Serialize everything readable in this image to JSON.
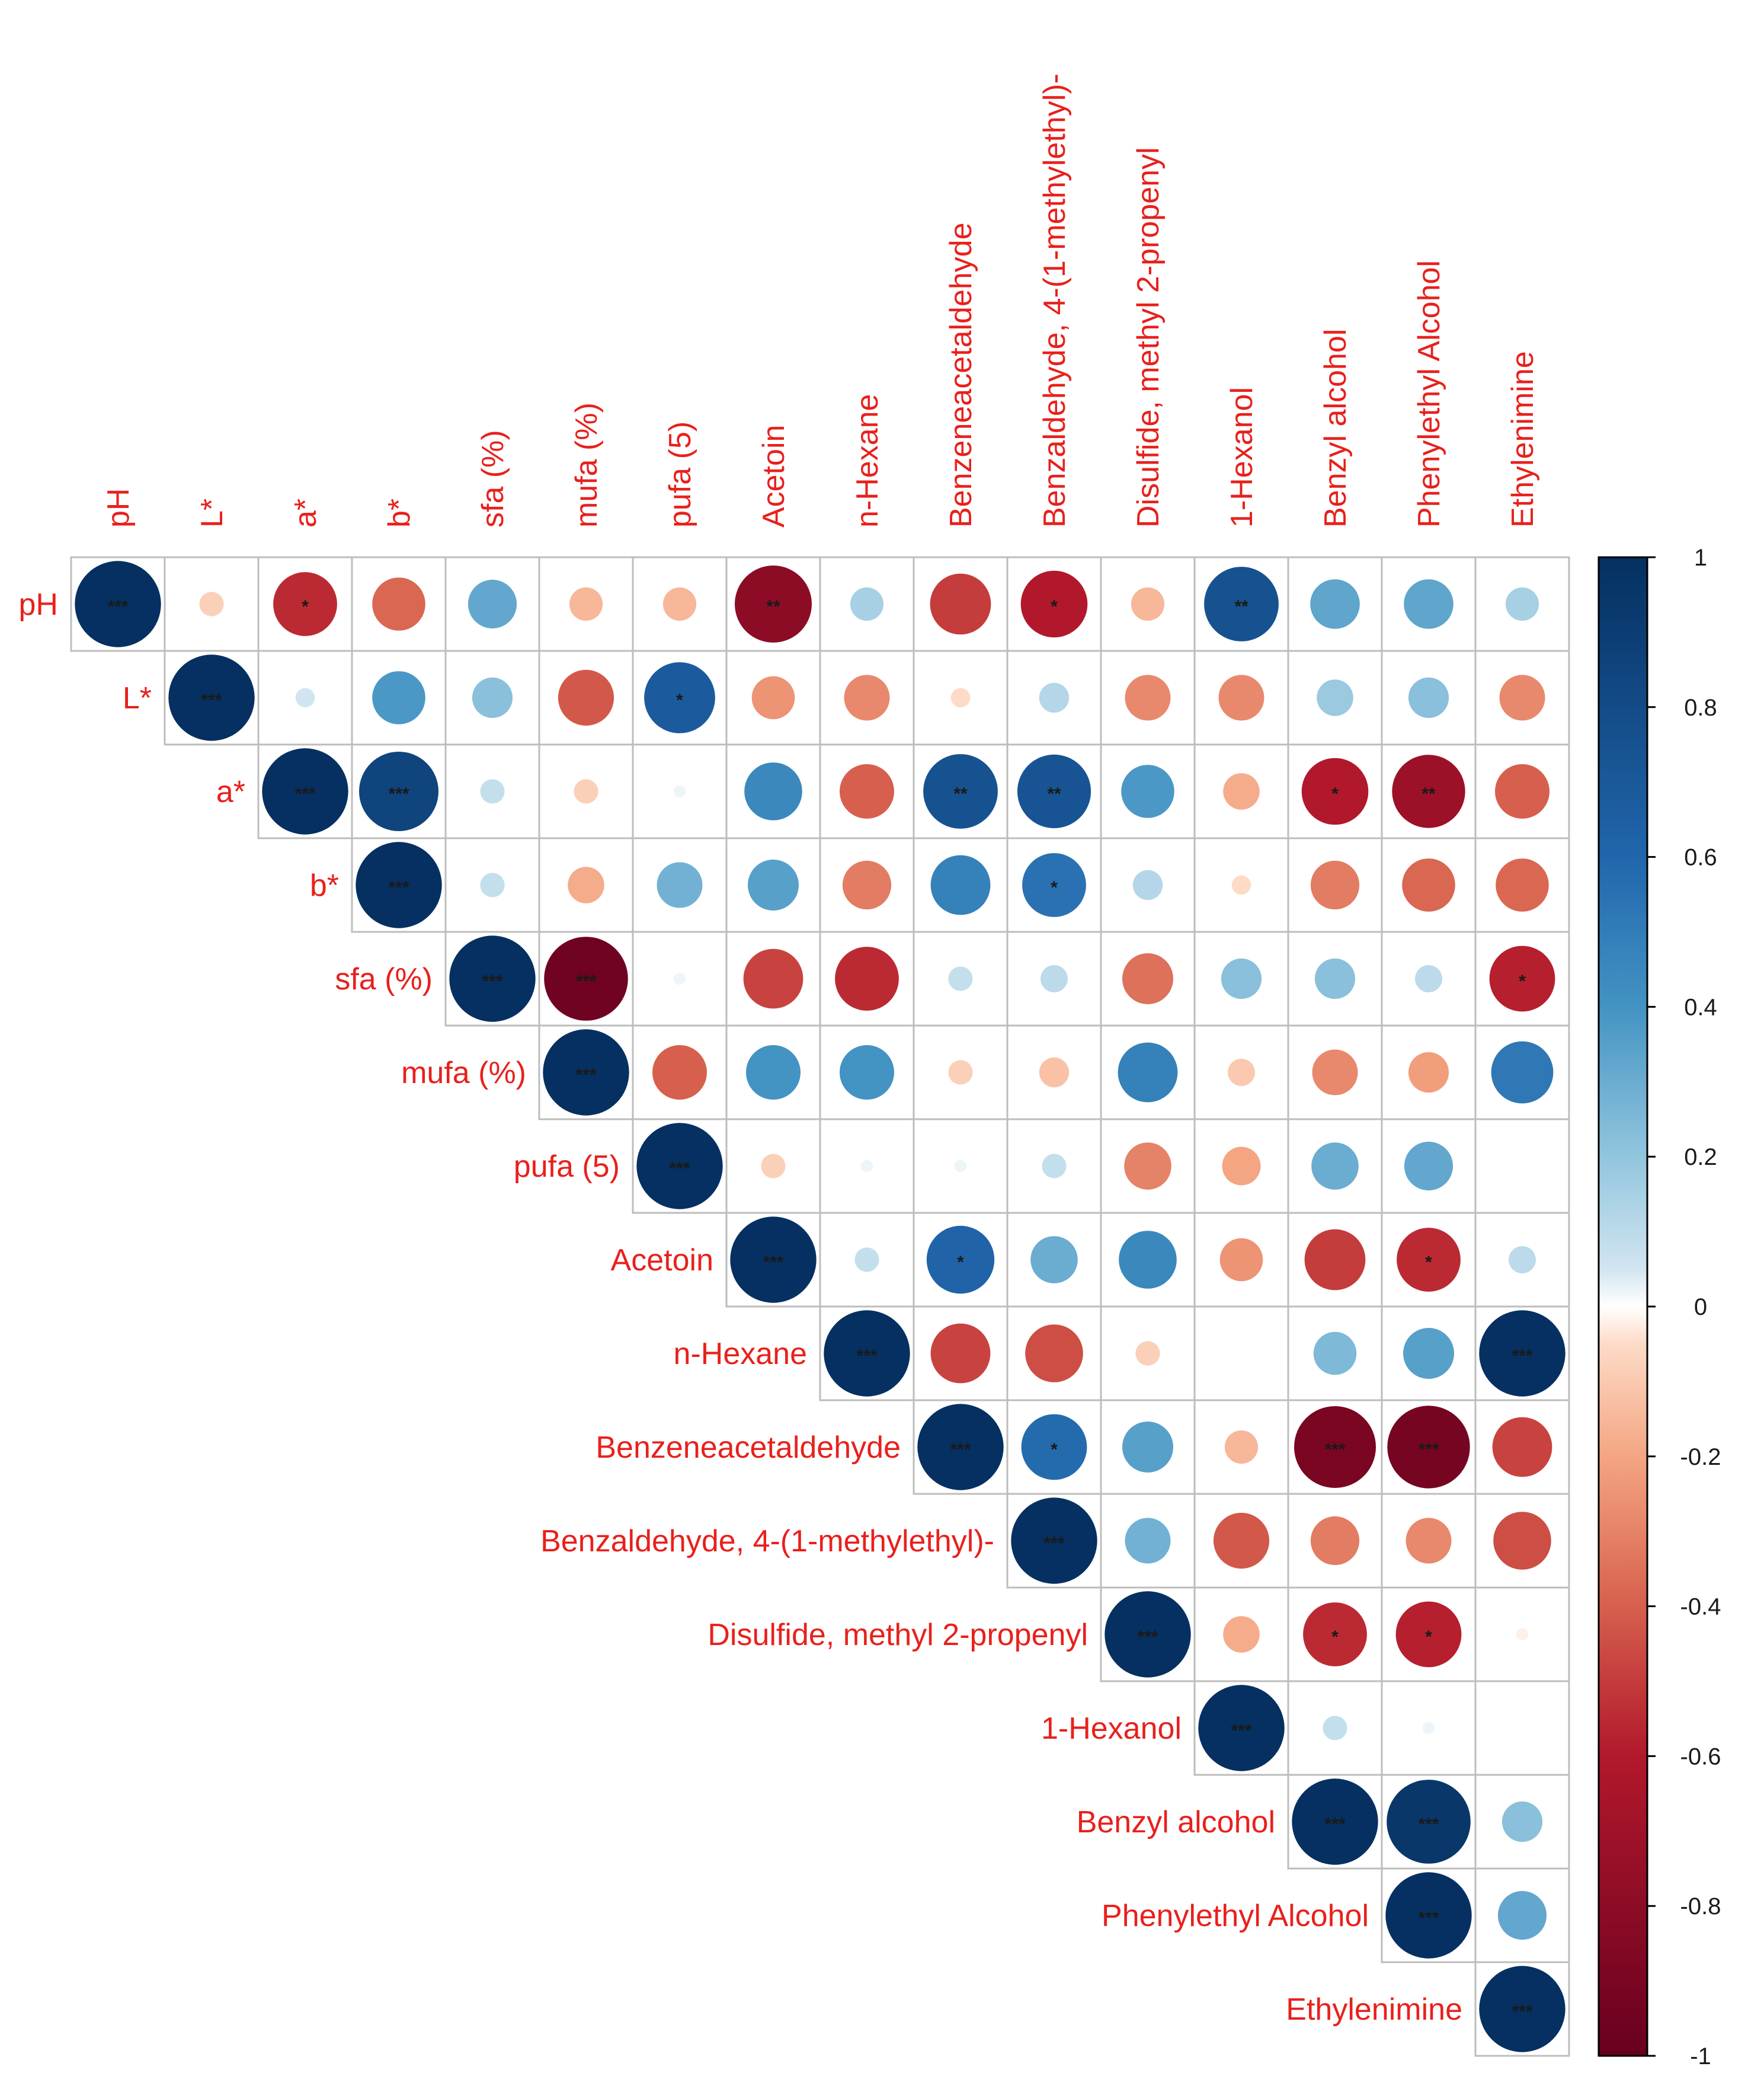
{
  "chart_data": {
    "type": "heatmap",
    "variables": [
      "pH",
      "L*",
      "a*",
      "b*",
      "sfa (%)",
      "mufa (%)",
      "pufa (5)",
      "Acetoin",
      "n-Hexane",
      "Benzeneacetaldehyde",
      "Benzaldehyde, 4-(1-methylethyl)-",
      "Disulfide, methyl 2-propenyl",
      "1-Hexanol",
      "Benzyl alcohol",
      "Phenylethyl Alcohol",
      "Ethylenimine"
    ],
    "matrix": [
      [
        1.0,
        -0.08,
        -0.55,
        -0.38,
        0.32,
        -0.15,
        -0.15,
        -0.8,
        0.15,
        -0.5,
        -0.6,
        -0.15,
        0.75,
        0.33,
        0.33,
        0.15
      ],
      [
        null,
        1.0,
        0.05,
        0.38,
        0.22,
        -0.42,
        0.68,
        -0.25,
        -0.28,
        -0.05,
        0.12,
        -0.28,
        -0.28,
        0.18,
        0.22,
        -0.28
      ],
      [
        null,
        null,
        1.0,
        0.85,
        0.08,
        -0.08,
        0.02,
        0.45,
        -0.4,
        0.75,
        0.73,
        0.38,
        -0.18,
        -0.6,
        -0.72,
        -0.4
      ],
      [
        null,
        null,
        null,
        1.0,
        0.08,
        -0.18,
        0.28,
        0.35,
        -0.32,
        0.48,
        0.55,
        0.12,
        -0.05,
        -0.32,
        -0.38,
        -0.38
      ],
      [
        null,
        null,
        null,
        null,
        1.0,
        -0.95,
        0.02,
        -0.48,
        -0.55,
        0.08,
        0.1,
        -0.35,
        0.22,
        0.22,
        0.1,
        -0.58
      ],
      [
        null,
        null,
        null,
        null,
        null,
        1.0,
        -0.4,
        0.4,
        0.4,
        -0.08,
        -0.12,
        0.48,
        -0.1,
        -0.28,
        -0.22,
        0.52
      ],
      [
        null,
        null,
        null,
        null,
        null,
        null,
        1.0,
        -0.08,
        0.02,
        0.02,
        0.08,
        -0.3,
        -0.2,
        0.3,
        0.32,
        0.0
      ],
      [
        null,
        null,
        null,
        null,
        null,
        null,
        null,
        1.0,
        0.08,
        0.62,
        0.3,
        0.45,
        -0.25,
        -0.5,
        -0.55,
        0.1
      ],
      [
        null,
        null,
        null,
        null,
        null,
        null,
        null,
        null,
        1.0,
        -0.48,
        -0.45,
        -0.08,
        0.0,
        0.25,
        0.35,
        1.0
      ],
      [
        null,
        null,
        null,
        null,
        null,
        null,
        null,
        null,
        null,
        1.0,
        0.58,
        0.35,
        -0.15,
        -0.9,
        -0.92,
        -0.48
      ],
      [
        null,
        null,
        null,
        null,
        null,
        null,
        null,
        null,
        null,
        null,
        1.0,
        0.28,
        -0.42,
        -0.32,
        -0.28,
        -0.45
      ],
      [
        null,
        null,
        null,
        null,
        null,
        null,
        null,
        null,
        null,
        null,
        null,
        1.0,
        -0.18,
        -0.55,
        -0.58,
        -0.02
      ],
      [
        null,
        null,
        null,
        null,
        null,
        null,
        null,
        null,
        null,
        null,
        null,
        null,
        1.0,
        0.08,
        0.02,
        0.0
      ],
      [
        null,
        null,
        null,
        null,
        null,
        null,
        null,
        null,
        null,
        null,
        null,
        null,
        null,
        1.0,
        0.95,
        0.22
      ],
      [
        null,
        null,
        null,
        null,
        null,
        null,
        null,
        null,
        null,
        null,
        null,
        null,
        null,
        null,
        1.0,
        0.32
      ],
      [
        null,
        null,
        null,
        null,
        null,
        null,
        null,
        null,
        null,
        null,
        null,
        null,
        null,
        null,
        null,
        1.0
      ]
    ],
    "significance": [
      [
        "***",
        "",
        "*",
        "",
        "",
        "",
        "",
        "**",
        "",
        "",
        "*",
        "",
        "**",
        "",
        "",
        ""
      ],
      [
        "",
        "***",
        "",
        "",
        "",
        "",
        "*",
        "",
        "",
        "",
        "",
        "",
        "",
        "",
        "",
        ""
      ],
      [
        "",
        "",
        "***",
        "***",
        "",
        "",
        "",
        "",
        "",
        "**",
        "**",
        "",
        "",
        "*",
        "**",
        ""
      ],
      [
        "",
        "",
        "",
        "***",
        "",
        "",
        "",
        "",
        "",
        "",
        "*",
        "",
        "",
        "",
        "",
        ""
      ],
      [
        "",
        "",
        "",
        "",
        "***",
        "***",
        "",
        "",
        "",
        "",
        "",
        "",
        "",
        "",
        "",
        "*"
      ],
      [
        "",
        "",
        "",
        "",
        "",
        "***",
        "",
        "",
        "",
        "",
        "",
        "",
        "",
        "",
        "",
        ""
      ],
      [
        "",
        "",
        "",
        "",
        "",
        "",
        "***",
        "",
        "",
        "",
        "",
        "",
        "",
        "",
        "",
        ""
      ],
      [
        "",
        "",
        "",
        "",
        "",
        "",
        "",
        "***",
        "",
        "*",
        "",
        "",
        "",
        "",
        "*",
        ""
      ],
      [
        "",
        "",
        "",
        "",
        "",
        "",
        "",
        "",
        "***",
        "",
        "",
        "",
        "",
        "",
        "",
        "***"
      ],
      [
        "",
        "",
        "",
        "",
        "",
        "",
        "",
        "",
        "",
        "***",
        "*",
        "",
        "",
        "***",
        "***",
        ""
      ],
      [
        "",
        "",
        "",
        "",
        "",
        "",
        "",
        "",
        "",
        "",
        "***",
        "",
        "",
        "",
        "",
        ""
      ],
      [
        "",
        "",
        "",
        "",
        "",
        "",
        "",
        "",
        "",
        "",
        "",
        "***",
        "",
        "*",
        "*",
        ""
      ],
      [
        "",
        "",
        "",
        "",
        "",
        "",
        "",
        "",
        "",
        "",
        "",
        "",
        "***",
        "",
        "",
        ""
      ],
      [
        "",
        "",
        "",
        "",
        "",
        "",
        "",
        "",
        "",
        "",
        "",
        "",
        "",
        "***",
        "***",
        ""
      ],
      [
        "",
        "",
        "",
        "",
        "",
        "",
        "",
        "",
        "",
        "",
        "",
        "",
        "",
        "",
        "***",
        ""
      ],
      [
        "",
        "",
        "",
        "",
        "",
        "",
        "",
        "",
        "",
        "",
        "",
        "",
        "",
        "",
        "",
        "***"
      ]
    ],
    "colorbar": {
      "range": [
        -1,
        1
      ],
      "ticks": [
        "1",
        "0.8",
        "0.6",
        "0.4",
        "0.2",
        "0",
        "-0.2",
        "-0.4",
        "-0.6",
        "-0.8",
        "-1"
      ]
    }
  }
}
